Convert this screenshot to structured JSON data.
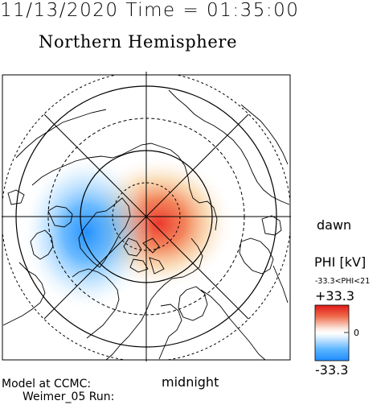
{
  "header": {
    "timestamp": "11/13/2020 Time = 01:35:00",
    "hemisphere_title": "Northern Hemisphere"
  },
  "map": {
    "projection": "polar stereographic, north pole at center",
    "latitude_circles_solid_deg": [
      50,
      70
    ],
    "latitude_circles_dashed_deg": [
      40,
      60,
      80
    ],
    "meridian_spacing_deg": 45,
    "coastlines": "continental outlines of North America, Greenland, Europe and Asia"
  },
  "labels": {
    "dawn": "dawn",
    "midnight": "midnight",
    "model_line1": "Model at CCMC:",
    "model_line2": "Weimer_05 Run:"
  },
  "colorbar": {
    "title": "PHI [kV]",
    "range_text": "-33.3<PHI<21",
    "max_label": "+33.3",
    "zero_label": "0",
    "min_label": "-33.3",
    "colors": {
      "positive": "#e82020",
      "neutral": "#ffffff",
      "negative": "#1e90ff"
    }
  },
  "potential_pattern": {
    "positive_cell_peak_kV": 21,
    "negative_cell_peak_kV": -33.3,
    "positive_cell_location": "near pole, dawn-noon side",
    "negative_cell_location": "dusk side, ~60-70 deg latitude"
  }
}
